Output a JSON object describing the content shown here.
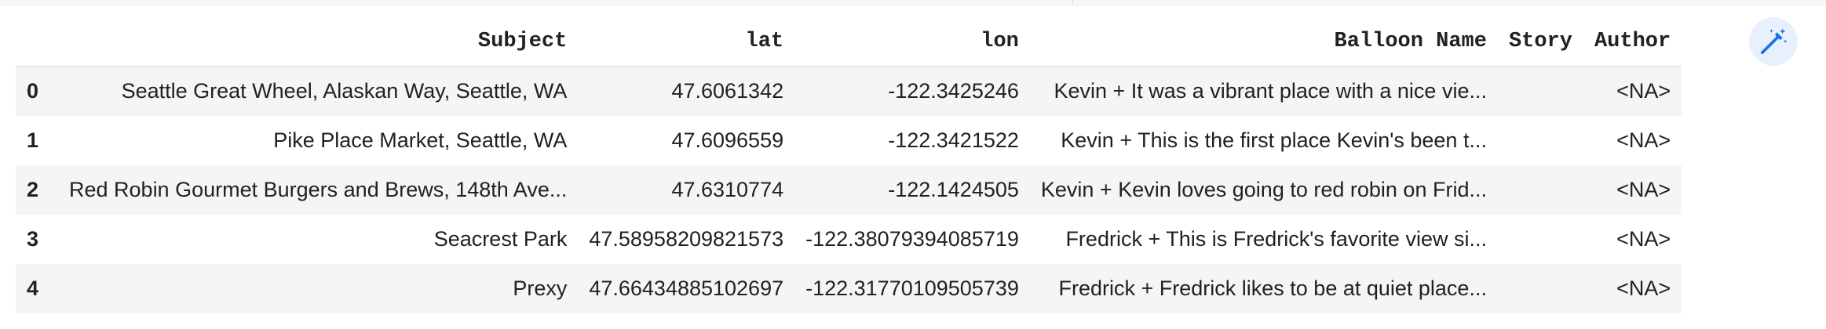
{
  "table": {
    "columns": [
      "",
      "Subject",
      "lat",
      "lon",
      "Balloon Name",
      "Story",
      "Author"
    ],
    "rows": [
      {
        "index": "0",
        "subject": "Seattle Great Wheel, Alaskan Way, Seattle, WA",
        "lat": "47.6061342",
        "lon": "-122.3425246",
        "balloon_name": "Kevin + It was a vibrant place with a nice vie...",
        "story": "",
        "author": "<NA>"
      },
      {
        "index": "1",
        "subject": "Pike Place Market, Seattle, WA",
        "lat": "47.6096559",
        "lon": "-122.3421522",
        "balloon_name": "Kevin + This is the first place Kevin's been t...",
        "story": "",
        "author": "<NA>"
      },
      {
        "index": "2",
        "subject": "Red Robin Gourmet Burgers and Brews, 148th Ave...",
        "lat": "47.6310774",
        "lon": "-122.1424505",
        "balloon_name": "Kevin + Kevin loves going to red robin on Frid...",
        "story": "",
        "author": "<NA>"
      },
      {
        "index": "3",
        "subject": "Seacrest Park",
        "lat": "47.58958209821573",
        "lon": "-122.38079394085719",
        "balloon_name": "Fredrick + This is Fredrick's favorite view si...",
        "story": "",
        "author": "<NA>"
      },
      {
        "index": "4",
        "subject": "Prexy",
        "lat": "47.66434885102697",
        "lon": "-122.31770109505739",
        "balloon_name": "Fredrick + Fredrick likes to be at quiet place...",
        "story": "",
        "author": "<NA>"
      }
    ]
  },
  "toolbar": {
    "magic_icon": "magic-wand-icon",
    "accent": "#1a73e8",
    "button_bg": "#e8f0fe"
  }
}
